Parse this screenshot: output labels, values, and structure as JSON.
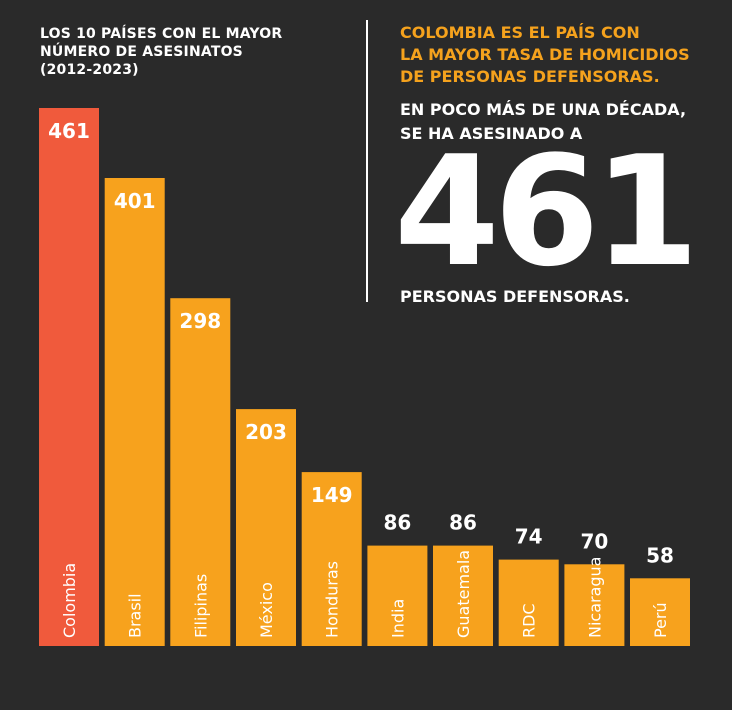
{
  "title": {
    "lines": [
      "LOS 10 PAÍSES CON EL MAYOR",
      "NÚMERO DE ASESINATOS",
      "(2012-2023)"
    ]
  },
  "headline": {
    "lines": [
      "COLOMBIA ES EL PAÍS CON",
      "LA MAYOR TASA DE HOMICIDIOS",
      "DE PERSONAS DEFENSORAS."
    ]
  },
  "lead": {
    "lines": [
      "EN POCO MÁS DE UNA DÉCADA,",
      "SE HA ASESINADO A"
    ]
  },
  "big_number": "461",
  "tail": "PERSONAS DEFENSORAS.",
  "colors": {
    "background": "#2a2a2a",
    "highlight": "#f05a3c",
    "bar": "#f7a21d",
    "headline": "#f5a21d",
    "text": "#ffffff"
  },
  "chart_data": {
    "type": "bar",
    "title": "LOS 10 PAÍSES CON EL MAYOR NÚMERO DE ASESINATOS (2012-2023)",
    "categories": [
      "Colombia",
      "Brasil",
      "Filipinas",
      "México",
      "Honduras",
      "India",
      "Guatemala",
      "RDC",
      "Nicaragua",
      "Perú"
    ],
    "values": [
      461,
      401,
      298,
      203,
      149,
      86,
      86,
      74,
      70,
      58
    ],
    "value_labels": [
      "461",
      "401",
      "298",
      "203",
      "149",
      "86",
      "86",
      "74",
      "70",
      "58"
    ],
    "highlight_index": 0,
    "ylim": [
      0,
      461
    ],
    "grid": false,
    "legend": "none"
  }
}
